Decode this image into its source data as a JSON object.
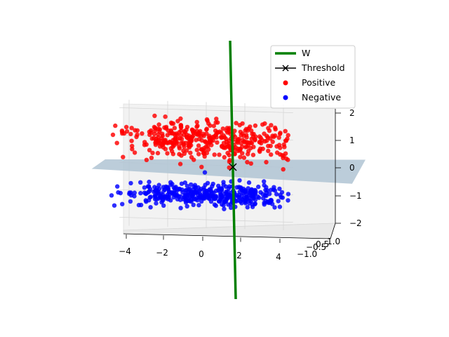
{
  "chart_data": {
    "type": "scatter",
    "projection": "3d",
    "title": "",
    "xlabel": "",
    "ylabel": "",
    "zlabel": "",
    "x_ticks": [
      "−4",
      "−2",
      "0",
      "2",
      "4"
    ],
    "y_ticks": [
      "−1.0",
      "−0.5",
      "0.5",
      "1.0"
    ],
    "z_ticks": [
      "−2",
      "−1",
      "0",
      "1",
      "2"
    ],
    "xlim": [
      -4.5,
      4.5
    ],
    "ylim": [
      -1.2,
      1.2
    ],
    "zlim": [
      -2.1,
      2.1
    ],
    "grid": true,
    "legend_position": "upper right",
    "legend": [
      {
        "label": "W",
        "kind": "line",
        "color": "#008000"
      },
      {
        "label": "Threshold",
        "kind": "line-x-marker",
        "color": "#000000"
      },
      {
        "label": "Positive",
        "kind": "point",
        "color": "#ff0000"
      },
      {
        "label": "Negative",
        "kind": "point",
        "color": "#0000ff"
      }
    ],
    "series": [
      {
        "name": "Positive",
        "color": "#ff0000",
        "center_z": 1.0,
        "x_range": [
          -4.5,
          4.5
        ],
        "z_spread": 0.8,
        "count": 400
      },
      {
        "name": "Negative",
        "color": "#0000ff",
        "center_z": -1.0,
        "x_range": [
          -4.5,
          4.5
        ],
        "z_spread": 0.45,
        "count": 400
      }
    ],
    "w_line": {
      "from": [
        0.8,
        0,
        -5.0
      ],
      "to": [
        0.9,
        0,
        5.0
      ],
      "color": "#008000"
    },
    "threshold_point": [
      0.85,
      0,
      0
    ],
    "decision_plane": {
      "z": 0,
      "color": "#b0c4d4"
    }
  }
}
